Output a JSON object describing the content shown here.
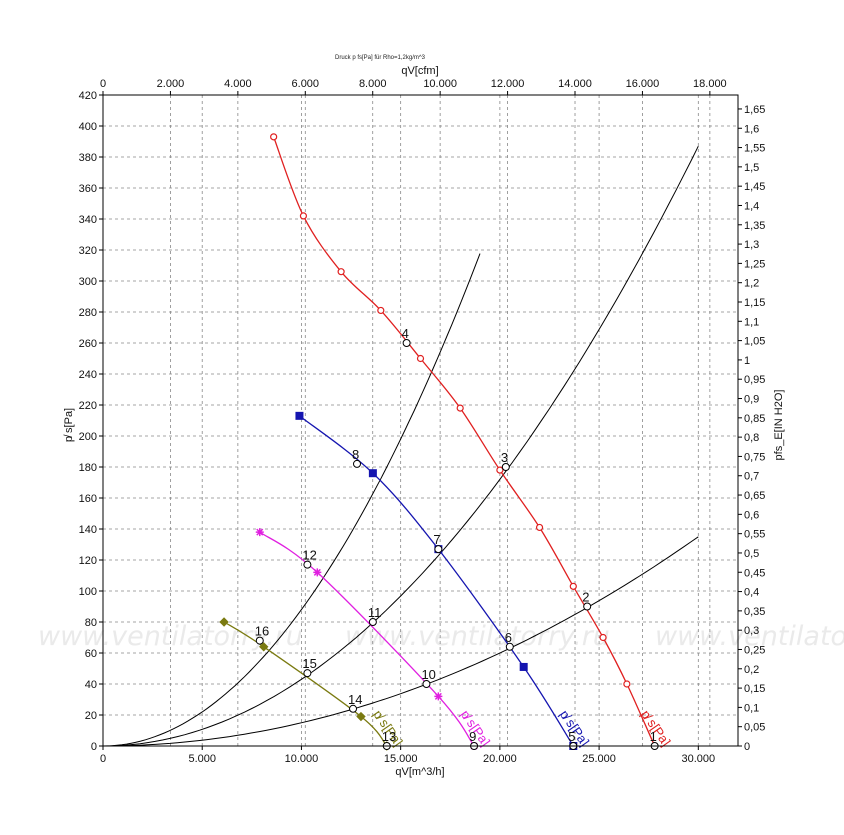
{
  "chart_data": {
    "type": "line",
    "title": "Druck p fs[Pa] für Rho=1,2kg/m^3",
    "xlabel": "qV[m^3/h]",
    "x2label": "qV[cfm]",
    "ylabel": "p̸ s[Pa]",
    "y2label": "pfs_E[IN H2O]",
    "xlim": [
      0,
      32000
    ],
    "ylim": [
      0,
      420
    ],
    "x_ticks": [
      "0",
      "5.000",
      "10.000",
      "15.000",
      "20.000",
      "25.000",
      "30.000"
    ],
    "x2_ticks": [
      "0",
      "2.000",
      "4.000",
      "6.000",
      "8.000",
      "10.000",
      "12.000",
      "14.000",
      "16.000",
      "18.000"
    ],
    "y_ticks": [
      "0",
      "20",
      "40",
      "60",
      "80",
      "100",
      "120",
      "140",
      "160",
      "180",
      "200",
      "220",
      "240",
      "260",
      "280",
      "300",
      "320",
      "340",
      "360",
      "380",
      "400",
      "420"
    ],
    "y2_ticks": [
      "0",
      "0,05",
      "0,1",
      "0,15",
      "0,2",
      "0,25",
      "0,3",
      "0,35",
      "0,4",
      "0,45",
      "0,5",
      "0,55",
      "0,6",
      "0,65",
      "0,7",
      "0,75",
      "0,8",
      "0,85",
      "0,9",
      "0,95",
      "1",
      "1,05",
      "1,1",
      "1,15",
      "1,2",
      "1,25",
      "1,3",
      "1,35",
      "1,4",
      "1,45",
      "1,5",
      "1,55",
      "1,6",
      "1,65"
    ],
    "grid": true,
    "series": [
      {
        "name": "p̸ s[Pa]",
        "color": "#e02020",
        "marker": "circle",
        "x": [
          8600,
          10100,
          12000,
          14000,
          16000,
          18000,
          20000,
          22000,
          23700,
          25200,
          26400,
          27800
        ],
        "y": [
          393,
          342,
          306,
          281,
          250,
          218,
          178,
          141,
          103,
          70,
          40,
          0
        ]
      },
      {
        "name": "p̸ s[Pa]",
        "color": "#1515b0",
        "marker": "square",
        "x": [
          9900,
          13600,
          16900,
          21200,
          23700
        ],
        "y": [
          213,
          176,
          127,
          51,
          0
        ]
      },
      {
        "name": "p̸ s[Pa]",
        "color": "#e020e0",
        "marker": "star",
        "x": [
          7900,
          10800,
          16900,
          18700
        ],
        "y": [
          138,
          112,
          32,
          0
        ]
      },
      {
        "name": "p̸ s[Pa]",
        "color": "#7a7a10",
        "marker": "diamond",
        "x": [
          6100,
          8100,
          13000,
          14300
        ],
        "y": [
          80,
          64,
          19,
          0
        ]
      }
    ],
    "system_curves": [
      {
        "k": 8.8e-07,
        "x_end": 19000
      },
      {
        "k": 4.3e-07,
        "x_end": 30000
      },
      {
        "k": 1.5e-07,
        "x_end": 30000
      }
    ],
    "operating_points": [
      {
        "label": "1",
        "x": 27800,
        "y": 0
      },
      {
        "label": "2",
        "x": 24400,
        "y": 90
      },
      {
        "label": "3",
        "x": 20300,
        "y": 180
      },
      {
        "label": "4",
        "x": 15300,
        "y": 260
      },
      {
        "label": "5",
        "x": 23700,
        "y": 0
      },
      {
        "label": "6",
        "x": 20500,
        "y": 64
      },
      {
        "label": "7",
        "x": 16900,
        "y": 127
      },
      {
        "label": "8",
        "x": 12800,
        "y": 182
      },
      {
        "label": "9",
        "x": 18700,
        "y": 0
      },
      {
        "label": "10",
        "x": 16300,
        "y": 40
      },
      {
        "label": "11",
        "x": 13600,
        "y": 80
      },
      {
        "label": "12",
        "x": 10300,
        "y": 117
      },
      {
        "label": "13",
        "x": 14300,
        "y": 0
      },
      {
        "label": "14",
        "x": 12600,
        "y": 24
      },
      {
        "label": "15",
        "x": 10300,
        "y": 47
      },
      {
        "label": "16",
        "x": 7900,
        "y": 68
      }
    ]
  },
  "watermark": "www.ventilatorry.ru",
  "colors": {
    "grid": "#888888",
    "axis": "#000000",
    "system": "#000000"
  }
}
